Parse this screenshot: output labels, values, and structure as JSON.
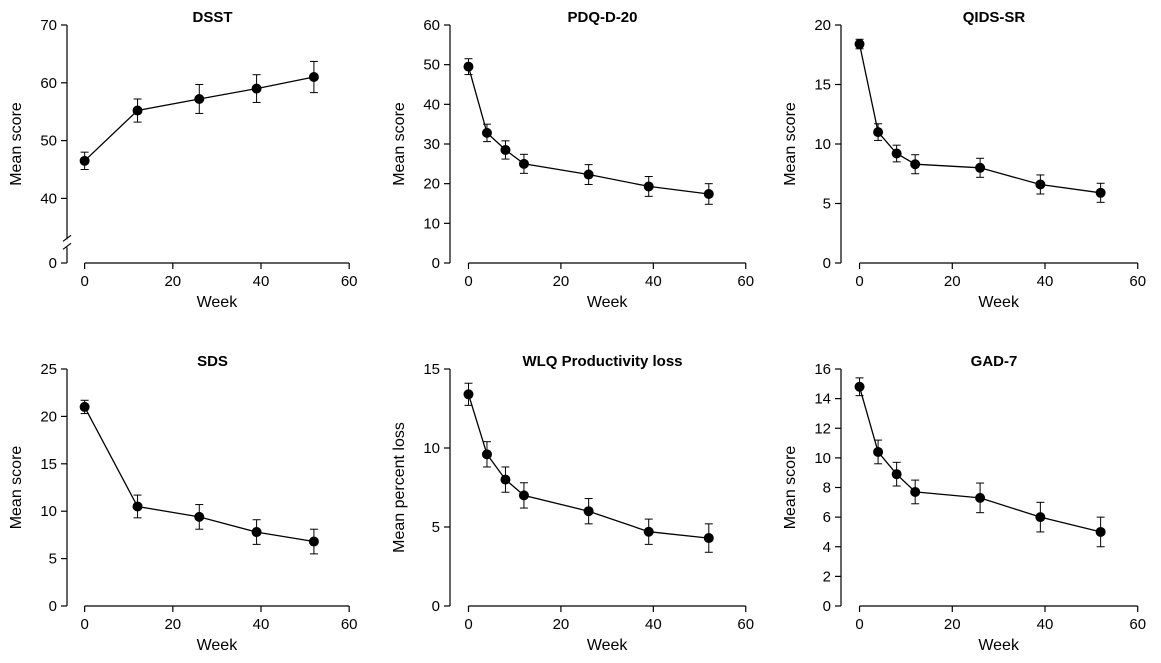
{
  "chart_data": [
    {
      "type": "line",
      "title": "DSST",
      "xlabel": "Week",
      "ylabel": "Mean score",
      "xlim": [
        -4,
        62
      ],
      "xticks": [
        0,
        20,
        40,
        60
      ],
      "ylim": [
        35,
        70
      ],
      "yticks": [
        40,
        50,
        60,
        70
      ],
      "axis_break": true,
      "extra_ytick": 0,
      "grid": false,
      "x": [
        0,
        12,
        26,
        39,
        52
      ],
      "y": [
        46.5,
        55.2,
        57.2,
        59.0,
        61.0
      ],
      "err": [
        1.5,
        2.0,
        2.5,
        2.4,
        2.7
      ]
    },
    {
      "type": "line",
      "title": "PDQ-D-20",
      "xlabel": "Week",
      "ylabel": "Mean score",
      "xlim": [
        -4,
        62
      ],
      "xticks": [
        0,
        20,
        40,
        60
      ],
      "ylim": [
        0,
        60
      ],
      "yticks": [
        0,
        10,
        20,
        30,
        40,
        50,
        60
      ],
      "grid": false,
      "x": [
        0,
        4,
        8,
        12,
        26,
        39,
        52
      ],
      "y": [
        49.5,
        32.8,
        28.5,
        25.0,
        22.3,
        19.3,
        17.4
      ],
      "err": [
        2.0,
        2.2,
        2.3,
        2.4,
        2.5,
        2.5,
        2.6
      ]
    },
    {
      "type": "line",
      "title": "QIDS-SR",
      "xlabel": "Week",
      "ylabel": "Mean score",
      "xlim": [
        -4,
        62
      ],
      "xticks": [
        0,
        20,
        40,
        60
      ],
      "ylim": [
        0,
        20
      ],
      "yticks": [
        0,
        5,
        10,
        15,
        20
      ],
      "grid": false,
      "x": [
        0,
        4,
        8,
        12,
        26,
        39,
        52
      ],
      "y": [
        18.4,
        11.0,
        9.2,
        8.3,
        8.0,
        6.6,
        5.9
      ],
      "err": [
        0.4,
        0.7,
        0.7,
        0.8,
        0.8,
        0.8,
        0.8
      ]
    },
    {
      "type": "line",
      "title": "SDS",
      "xlabel": "Week",
      "ylabel": "Mean score",
      "xlim": [
        -4,
        62
      ],
      "xticks": [
        0,
        20,
        40,
        60
      ],
      "ylim": [
        0,
        25
      ],
      "yticks": [
        0,
        5,
        10,
        15,
        20,
        25
      ],
      "grid": false,
      "x": [
        0,
        12,
        26,
        39,
        52
      ],
      "y": [
        21.0,
        10.5,
        9.4,
        7.8,
        6.8
      ],
      "err": [
        0.7,
        1.2,
        1.3,
        1.3,
        1.3
      ]
    },
    {
      "type": "line",
      "title": "WLQ Productivity loss",
      "xlabel": "Week",
      "ylabel": "Mean percent loss",
      "xlim": [
        -4,
        62
      ],
      "xticks": [
        0,
        20,
        40,
        60
      ],
      "ylim": [
        0,
        15
      ],
      "yticks": [
        0,
        5,
        10,
        15
      ],
      "grid": false,
      "x": [
        0,
        4,
        8,
        12,
        26,
        39,
        52
      ],
      "y": [
        13.4,
        9.6,
        8.0,
        7.0,
        6.0,
        4.7,
        4.3
      ],
      "err": [
        0.7,
        0.8,
        0.8,
        0.8,
        0.8,
        0.8,
        0.9
      ]
    },
    {
      "type": "line",
      "title": "GAD-7",
      "xlabel": "Week",
      "ylabel": "Mean score",
      "xlim": [
        -4,
        62
      ],
      "xticks": [
        0,
        20,
        40,
        60
      ],
      "ylim": [
        0,
        16
      ],
      "yticks": [
        0,
        2,
        4,
        6,
        8,
        10,
        12,
        14,
        16
      ],
      "grid": false,
      "x": [
        0,
        4,
        8,
        12,
        26,
        39,
        52
      ],
      "y": [
        14.8,
        10.4,
        8.9,
        7.7,
        7.3,
        6.0,
        5.0
      ],
      "err": [
        0.6,
        0.8,
        0.8,
        0.8,
        1.0,
        1.0,
        1.0
      ]
    }
  ]
}
